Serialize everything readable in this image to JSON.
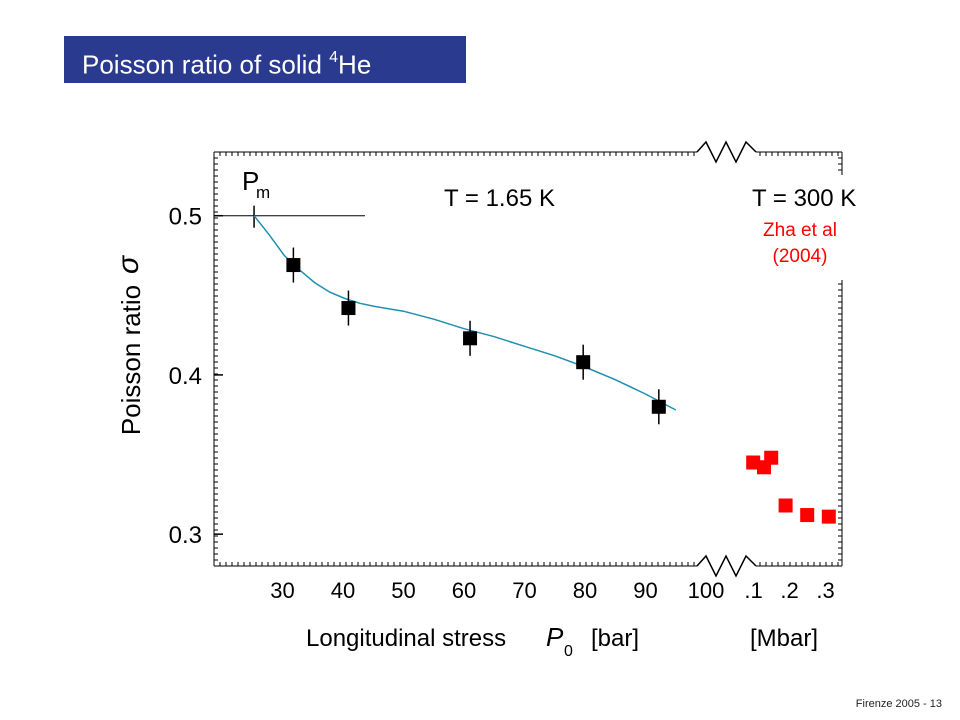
{
  "slide": {
    "title_main": "Poisson ratio of  solid ",
    "title_sup": "4",
    "title_end": "He",
    "footer": "Firenze  2005  - 13"
  },
  "chart_data": {
    "type": "scatter",
    "ylabel": "Poisson ratio",
    "ylabel_symbol": "σ",
    "ylim": [
      0.28,
      0.54
    ],
    "yticks": [
      0.3,
      0.4,
      0.5
    ],
    "ytick_labels": [
      "0.3",
      "0.4",
      "0.5"
    ],
    "xlabel": "Longitudinal stress",
    "xlabel_symbol": "P",
    "xlabel_sub": "0",
    "x_unit_left": "[bar]",
    "x_unit_right": "[Mbar]",
    "left_xlim": [
      20,
      100
    ],
    "left_xticks": [
      30,
      40,
      50,
      60,
      70,
      80,
      90,
      100
    ],
    "left_xtick_labels": [
      "30",
      "40",
      "50",
      "60",
      "70",
      "80",
      "90",
      "100"
    ],
    "right_xlim": [
      0.09,
      0.34
    ],
    "right_xticks": [
      0.1,
      0.2,
      0.3
    ],
    "right_xtick_labels": [
      ".1",
      ".2",
      ".3"
    ],
    "melting_label": "P",
    "melting_label_sub": "m",
    "melting_pressure": 25.3,
    "melting_sigma": 0.5,
    "annotations": {
      "low_T": "T = 1.65 K",
      "high_T": "T = 300 K",
      "ref_line1": "Zha et al",
      "ref_line2": "(2004)"
    },
    "series": [
      {
        "color": "#000000",
        "x": [
          31.8,
          40.9,
          61.0,
          79.7,
          92.2
        ],
        "y": [
          0.469,
          0.442,
          0.423,
          0.408,
          0.38
        ],
        "yerr": [
          0.011,
          0.011,
          0.011,
          0.011,
          0.011
        ]
      },
      {
        "color": "#ff0000",
        "x": [
          0.11,
          0.14,
          0.16,
          0.2,
          0.26,
          0.32
        ],
        "y": [
          0.345,
          0.342,
          0.348,
          0.318,
          0.312,
          0.311
        ]
      }
    ],
    "fit_curve": {
      "color": "#1f8fb0",
      "x": [
        25.3,
        27.8,
        30.3,
        32.8,
        35.3,
        37.8,
        40.3,
        42.8,
        45.3,
        50,
        55,
        60,
        65,
        70,
        75,
        80,
        85,
        90,
        95
      ],
      "y": [
        0.5,
        0.488,
        0.475,
        0.466,
        0.458,
        0.452,
        0.448,
        0.445,
        0.443,
        0.44,
        0.435,
        0.429,
        0.424,
        0.418,
        0.412,
        0.405,
        0.397,
        0.388,
        0.378
      ]
    },
    "grid": false
  }
}
